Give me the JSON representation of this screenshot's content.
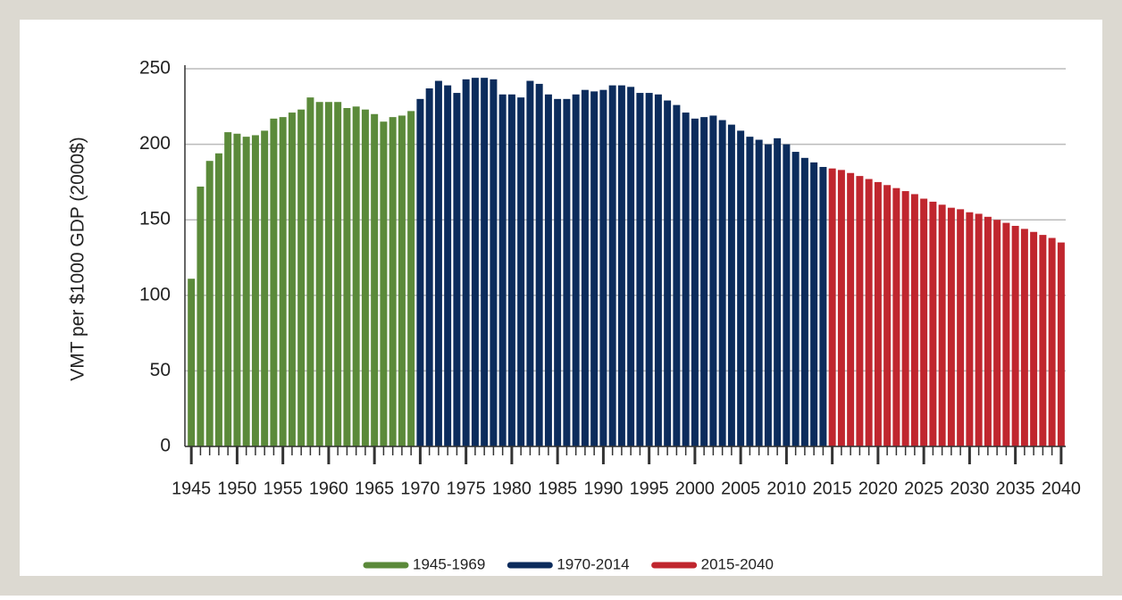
{
  "chart_data": {
    "type": "bar",
    "ylabel": "VMT per $1000 GDP (2000$)",
    "xlim": [
      1944.3,
      2040.5
    ],
    "ylim": [
      0,
      250
    ],
    "xticks": [
      1945,
      1950,
      1955,
      1960,
      1965,
      1970,
      1975,
      1980,
      1985,
      1990,
      1995,
      2000,
      2005,
      2010,
      2015,
      2020,
      2025,
      2030,
      2035,
      2040
    ],
    "yticks": [
      0,
      50,
      100,
      150,
      200,
      250
    ],
    "grid": true,
    "legend": "bottom",
    "series": [
      {
        "name": "1945-1969",
        "color": "#5b8a3a",
        "x": [
          1945,
          1946,
          1947,
          1948,
          1949,
          1950,
          1951,
          1952,
          1953,
          1954,
          1955,
          1956,
          1957,
          1958,
          1959,
          1960,
          1961,
          1962,
          1963,
          1964,
          1965,
          1966,
          1967,
          1968,
          1969
        ],
        "values": [
          111,
          172,
          189,
          194,
          208,
          207,
          205,
          206,
          209,
          217,
          218,
          221,
          223,
          231,
          228,
          228,
          228,
          224,
          225,
          223,
          220,
          215,
          218,
          219,
          222
        ]
      },
      {
        "name": "1970-2014",
        "color": "#0c2c5c",
        "x": [
          1970,
          1971,
          1972,
          1973,
          1974,
          1975,
          1976,
          1977,
          1978,
          1979,
          1980,
          1981,
          1982,
          1983,
          1984,
          1985,
          1986,
          1987,
          1988,
          1989,
          1990,
          1991,
          1992,
          1993,
          1994,
          1995,
          1996,
          1997,
          1998,
          1999,
          2000,
          2001,
          2002,
          2003,
          2004,
          2005,
          2006,
          2007,
          2008,
          2009,
          2010,
          2011,
          2012,
          2013,
          2014
        ],
        "values": [
          230,
          237,
          242,
          239,
          234,
          243,
          244,
          244,
          243,
          233,
          233,
          231,
          242,
          240,
          233,
          230,
          230,
          233,
          236,
          235,
          236,
          239,
          239,
          238,
          234,
          234,
          233,
          229,
          226,
          221,
          217,
          218,
          219,
          216,
          213,
          209,
          205,
          203,
          200,
          204,
          200,
          195,
          191,
          188,
          185
        ]
      },
      {
        "name": "2015-2040",
        "color": "#c0262e",
        "x": [
          2015,
          2016,
          2017,
          2018,
          2019,
          2020,
          2021,
          2022,
          2023,
          2024,
          2025,
          2026,
          2027,
          2028,
          2029,
          2030,
          2031,
          2032,
          2033,
          2034,
          2035,
          2036,
          2037,
          2038,
          2039,
          2040
        ],
        "values": [
          184,
          183,
          181,
          179,
          177,
          175,
          173,
          171,
          169,
          167,
          164,
          162,
          160,
          158,
          157,
          155,
          154,
          152,
          150,
          148,
          146,
          144,
          142,
          140,
          138,
          135
        ]
      }
    ]
  }
}
